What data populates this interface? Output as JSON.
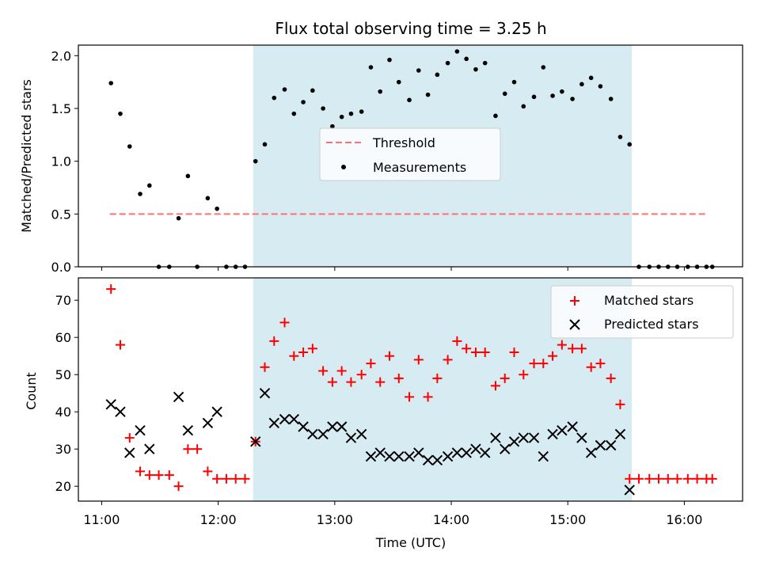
{
  "chart_data": [
    {
      "type": "scatter",
      "title": "Flux total observing time = 3.25 h",
      "xlabel": "",
      "ylabel": "Matched/Predicted stars",
      "xlim_hours": [
        10.8,
        16.5
      ],
      "ylim": [
        0,
        2.1
      ],
      "yticks": [
        0.0,
        0.5,
        1.0,
        1.5,
        2.0
      ],
      "ytick_labels": [
        "0.0",
        "0.5",
        "1.0",
        "1.5",
        "2.0"
      ],
      "shaded_interval_hours": [
        12.3,
        15.55
      ],
      "threshold": {
        "name": "Threshold",
        "value": 0.5,
        "x_range_hours": [
          11.07,
          16.2
        ],
        "color": "#ff7070"
      },
      "series": [
        {
          "name": "Measurements",
          "color": "#000000",
          "x_hours": [
            11.08,
            11.16,
            11.24,
            11.33,
            11.41,
            11.49,
            11.58,
            11.66,
            11.74,
            11.82,
            11.91,
            11.99,
            12.07,
            12.15,
            12.23,
            12.32,
            12.4,
            12.48,
            12.57,
            12.65,
            12.73,
            12.81,
            12.9,
            12.98,
            13.06,
            13.14,
            13.23,
            13.31,
            13.39,
            13.47,
            13.55,
            13.64,
            13.72,
            13.8,
            13.88,
            13.97,
            14.05,
            14.13,
            14.21,
            14.29,
            14.38,
            14.46,
            14.54,
            14.62,
            14.71,
            14.79,
            14.87,
            14.95,
            15.04,
            15.12,
            15.2,
            15.28,
            15.37,
            15.45,
            15.53,
            15.61,
            15.7,
            15.78,
            15.86,
            15.94,
            16.03,
            16.11,
            16.19,
            16.24
          ],
          "values": [
            1.74,
            1.45,
            1.14,
            0.69,
            0.77,
            0.0,
            0.0,
            0.46,
            0.86,
            0.0,
            0.65,
            0.55,
            0.0,
            0.0,
            0.0,
            1.0,
            1.16,
            1.6,
            1.68,
            1.45,
            1.56,
            1.67,
            1.5,
            1.33,
            1.42,
            1.45,
            1.47,
            1.89,
            1.66,
            1.96,
            1.75,
            1.58,
            1.86,
            1.63,
            1.82,
            1.93,
            2.04,
            1.97,
            1.87,
            1.93,
            1.43,
            1.64,
            1.75,
            1.52,
            1.61,
            1.89,
            1.62,
            1.66,
            1.59,
            1.73,
            1.79,
            1.71,
            1.59,
            1.23,
            1.16,
            0.0,
            0.0,
            0.0,
            0.0,
            0.0,
            0.0,
            0.0,
            0.0,
            0.0
          ]
        }
      ],
      "legend": [
        "Threshold",
        "Measurements"
      ],
      "legend_position": "center"
    },
    {
      "type": "scatter",
      "title": "",
      "xlabel": "Time (UTC)",
      "ylabel": "Count",
      "xlim_hours": [
        10.8,
        16.5
      ],
      "ylim": [
        16,
        76
      ],
      "yticks": [
        20,
        30,
        40,
        50,
        60,
        70
      ],
      "ytick_labels": [
        "20",
        "30",
        "40",
        "50",
        "60",
        "70"
      ],
      "xticks_hours": [
        11,
        12,
        13,
        14,
        15,
        16
      ],
      "xtick_labels": [
        "11:00",
        "12:00",
        "13:00",
        "14:00",
        "15:00",
        "16:00"
      ],
      "shaded_interval_hours": [
        12.3,
        15.55
      ],
      "series": [
        {
          "name": "Matched stars",
          "marker": "plus",
          "color": "#ff0000",
          "x_hours": [
            11.08,
            11.16,
            11.24,
            11.33,
            11.41,
            11.49,
            11.58,
            11.66,
            11.74,
            11.82,
            11.91,
            11.99,
            12.07,
            12.15,
            12.23,
            12.32,
            12.4,
            12.48,
            12.57,
            12.65,
            12.73,
            12.81,
            12.9,
            12.98,
            13.06,
            13.14,
            13.23,
            13.31,
            13.39,
            13.47,
            13.55,
            13.64,
            13.72,
            13.8,
            13.88,
            13.97,
            14.05,
            14.13,
            14.21,
            14.29,
            14.38,
            14.46,
            14.54,
            14.62,
            14.71,
            14.79,
            14.87,
            14.95,
            15.04,
            15.12,
            15.2,
            15.28,
            15.37,
            15.45,
            15.53,
            15.61,
            15.7,
            15.78,
            15.86,
            15.94,
            16.03,
            16.11,
            16.19,
            16.24
          ],
          "values": [
            73,
            58,
            33,
            24,
            23,
            23,
            23,
            20,
            30,
            30,
            24,
            22,
            22,
            22,
            22,
            32,
            52,
            59,
            64,
            55,
            56,
            57,
            51,
            48,
            51,
            48,
            50,
            53,
            48,
            55,
            49,
            44,
            54,
            44,
            49,
            54,
            59,
            57,
            56,
            56,
            47,
            49,
            56,
            50,
            53,
            53,
            55,
            58,
            57,
            57,
            52,
            53,
            49,
            42,
            22,
            22,
            22,
            22,
            22,
            22,
            22,
            22,
            22,
            22
          ]
        },
        {
          "name": "Predicted stars",
          "marker": "x",
          "color": "#000000",
          "x_hours": [
            11.08,
            11.16,
            11.24,
            11.33,
            11.41,
            11.66,
            11.74,
            11.91,
            11.99,
            12.32,
            12.4,
            12.48,
            12.57,
            12.65,
            12.73,
            12.81,
            12.9,
            12.98,
            13.06,
            13.14,
            13.23,
            13.31,
            13.39,
            13.47,
            13.55,
            13.64,
            13.72,
            13.8,
            13.88,
            13.97,
            14.05,
            14.13,
            14.21,
            14.29,
            14.38,
            14.46,
            14.54,
            14.62,
            14.71,
            14.79,
            14.87,
            14.95,
            15.04,
            15.12,
            15.2,
            15.28,
            15.37,
            15.45,
            15.53
          ],
          "values": [
            42,
            40,
            29,
            35,
            30,
            44,
            35,
            37,
            40,
            32,
            45,
            37,
            38,
            38,
            36,
            34,
            34,
            36,
            36,
            33,
            34,
            28,
            29,
            28,
            28,
            28,
            29,
            27,
            27,
            28,
            29,
            29,
            30,
            29,
            33,
            30,
            32,
            33,
            33,
            28,
            34,
            35,
            36,
            33,
            29,
            31,
            31,
            34,
            19
          ]
        }
      ],
      "legend": [
        "Matched stars",
        "Predicted stars"
      ],
      "legend_position": "upper right"
    }
  ]
}
